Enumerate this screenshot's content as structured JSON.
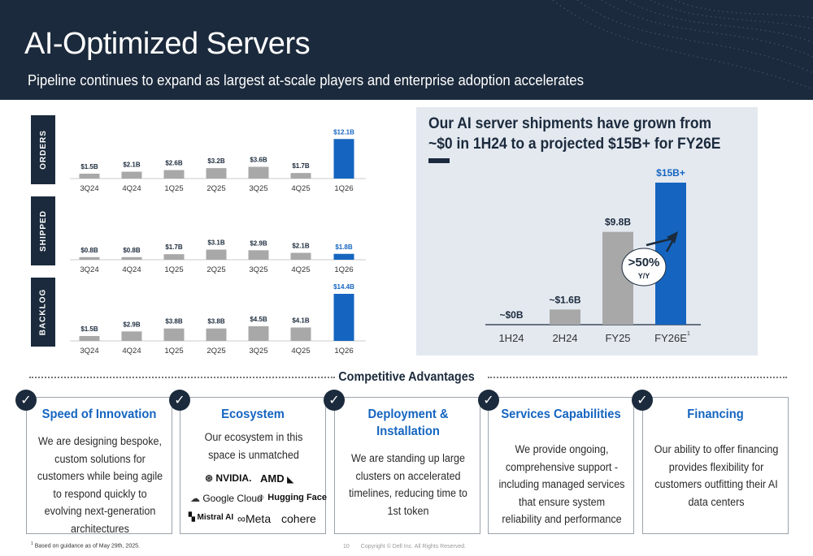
{
  "header": {
    "title": "AI-Optimized Servers",
    "subtitle": "Pipeline continues to expand as largest at-scale players and enterprise adoption accelerates"
  },
  "colors": {
    "navy": "#1b2a3c",
    "blue": "#1565c0",
    "gray": "#a8a8a8",
    "panel_bg": "#e4e9f0"
  },
  "chart_data": [
    {
      "type": "bar",
      "title": "",
      "side_label": "ORDERS",
      "categories": [
        "3Q24",
        "4Q24",
        "1Q25",
        "2Q25",
        "3Q25",
        "4Q25",
        "1Q26"
      ],
      "values": [
        1.5,
        2.1,
        2.6,
        3.2,
        3.6,
        1.7,
        12.1
      ],
      "labels": [
        "$1.5B",
        "$2.1B",
        "$2.6B",
        "$3.2B",
        "$3.6B",
        "$1.7B",
        "$12.1B"
      ],
      "highlight_index": 6
    },
    {
      "type": "bar",
      "title": "",
      "side_label": "SHIPPED",
      "categories": [
        "3Q24",
        "4Q24",
        "1Q25",
        "2Q25",
        "3Q25",
        "4Q25",
        "1Q26"
      ],
      "values": [
        0.8,
        0.8,
        1.7,
        3.1,
        2.9,
        2.1,
        1.8
      ],
      "labels": [
        "$0.8B",
        "$0.8B",
        "$1.7B",
        "$3.1B",
        "$2.9B",
        "$2.1B",
        "$1.8B"
      ],
      "highlight_index": 6
    },
    {
      "type": "bar",
      "title": "",
      "side_label": "BACKLOG",
      "categories": [
        "3Q24",
        "4Q24",
        "1Q25",
        "2Q25",
        "3Q25",
        "4Q25",
        "1Q26"
      ],
      "values": [
        1.5,
        2.9,
        3.8,
        3.8,
        4.5,
        4.1,
        14.4
      ],
      "labels": [
        "$1.5B",
        "$2.9B",
        "$3.8B",
        "$3.8B",
        "$4.5B",
        "$4.1B",
        "$14.4B"
      ],
      "highlight_index": 6
    },
    {
      "type": "bar",
      "title": "Our AI server shipments have grown from ~$0 in 1H24 to a projected $15B+ for FY26E",
      "categories": [
        "1H24",
        "2H24",
        "FY25",
        "FY26E"
      ],
      "values": [
        0,
        1.6,
        9.8,
        15
      ],
      "labels": [
        "~$0B",
        "~$1.6B",
        "$9.8B",
        "$15B+"
      ],
      "highlight_index": 3,
      "footnote_marker": "1",
      "growth_callout": {
        "value": ">50%",
        "unit": "Y/Y"
      }
    }
  ],
  "advantages": {
    "title": "Competitive Advantages",
    "check_icon": "✓",
    "cards": [
      {
        "title": "Speed of Innovation",
        "body": "We are designing bespoke, custom solutions for customers while being agile to respond quickly to evolving next-generation architectures"
      },
      {
        "title": "Ecosystem",
        "body": "Our ecosystem in this space is unmatched"
      },
      {
        "title": "Deployment & Installation",
        "body": "We are standing up large clusters on accelerated timelines, reducing time to 1st token"
      },
      {
        "title": "Services Capabilities",
        "body": "We provide ongoing, comprehensive support - including managed services that ensure system reliability and performance"
      },
      {
        "title": "Financing",
        "body": "Our ability to offer financing provides flexibility for customers outfitting their AI data centers"
      }
    ],
    "logos": [
      "NVIDIA.",
      "AMD",
      "Google Cloud",
      "Hugging Face",
      "Mistral AI",
      "Meta",
      "cohere"
    ]
  },
  "footnote": {
    "marker": "1",
    "text": "Based on guidance as of May 29th, 2025."
  },
  "footer": {
    "page": "10",
    "copyright": "Copyright © Dell Inc. All Rights Reserved."
  }
}
